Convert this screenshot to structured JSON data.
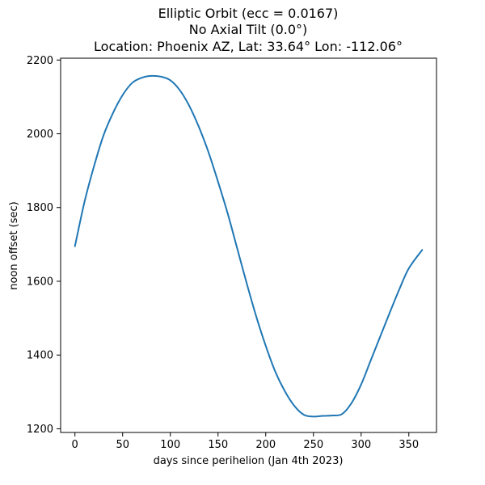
{
  "chart_data": {
    "type": "line",
    "title_lines": [
      "Elliptic Orbit (ecc = 0.0167)",
      "No Axial Tilt (0.0°)",
      "Location: Phoenix AZ, Lat: 33.64° Lon: -112.06°"
    ],
    "xlabel": "days since perihelion (Jan 4th 2023)",
    "ylabel": "noon offset (sec)",
    "xlim": [
      -15,
      379
    ],
    "ylim": [
      1190,
      2205
    ],
    "xticks": [
      0,
      50,
      100,
      150,
      200,
      250,
      300,
      350
    ],
    "yticks": [
      1200,
      1400,
      1600,
      1800,
      2000,
      2200
    ],
    "xtick_labels": [
      "0",
      "50",
      "100",
      "150",
      "200",
      "250",
      "300",
      "350"
    ],
    "ytick_labels": [
      "1200",
      "1400",
      "1600",
      "1800",
      "2000",
      "2200"
    ],
    "grid": false,
    "series": [
      {
        "color": "#1f77b4",
        "x": [
          0,
          10,
          20,
          30,
          40,
          50,
          60,
          70,
          80,
          90,
          100,
          110,
          120,
          130,
          140,
          150,
          160,
          170,
          180,
          190,
          200,
          210,
          220,
          230,
          240,
          250,
          260,
          270,
          280,
          290,
          300,
          310,
          320,
          330,
          340,
          350,
          364
        ],
        "y": [
          1695,
          1815,
          1912,
          1996,
          2057,
          2105,
          2138,
          2152,
          2157,
          2155,
          2145,
          2118,
          2075,
          2018,
          1950,
          1870,
          1785,
          1690,
          1595,
          1505,
          1425,
          1355,
          1302,
          1262,
          1238,
          1233,
          1235,
          1236,
          1240,
          1270,
          1320,
          1385,
          1450,
          1515,
          1578,
          1635,
          1685
        ]
      }
    ]
  }
}
